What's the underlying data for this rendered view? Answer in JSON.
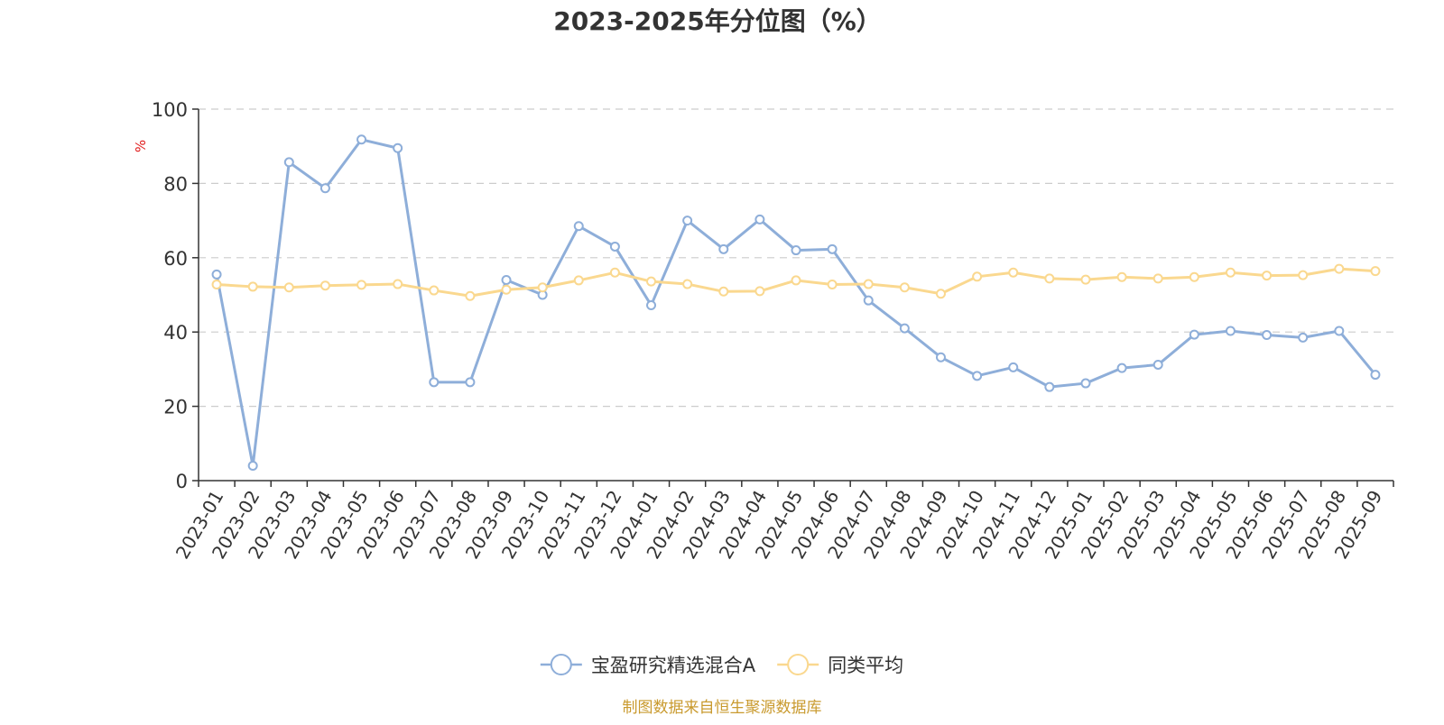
{
  "chart_data": {
    "type": "line",
    "title": "2023-2025年分位图（%）",
    "ylabel": "%",
    "xlabel": "",
    "ylim": [
      0,
      100
    ],
    "yticks": [
      0,
      20,
      40,
      60,
      80,
      100
    ],
    "grid": true,
    "legend_position": "bottom-center",
    "categories": [
      "2023-01",
      "2023-02",
      "2023-03",
      "2023-04",
      "2023-05",
      "2023-06",
      "2023-07",
      "2023-08",
      "2023-09",
      "2023-10",
      "2023-11",
      "2023-12",
      "2024-01",
      "2024-02",
      "2024-03",
      "2024-04",
      "2024-05",
      "2024-06",
      "2024-07",
      "2024-08",
      "2024-09",
      "2024-10",
      "2024-11",
      "2024-12",
      "2025-01",
      "2025-02",
      "2025-03",
      "2025-04",
      "2025-05",
      "2025-06",
      "2025-07",
      "2025-08",
      "2025-09"
    ],
    "series": [
      {
        "name": "宝盈研究精选混合A",
        "color": "#8eaed9",
        "values": [
          55.5,
          4.0,
          85.7,
          78.7,
          91.8,
          89.5,
          26.5,
          26.5,
          54.0,
          50.0,
          68.5,
          63.0,
          47.2,
          70.0,
          62.3,
          70.3,
          62.0,
          62.3,
          48.5,
          41.0,
          33.2,
          28.2,
          30.5,
          25.2,
          26.2,
          30.3,
          31.2,
          39.3,
          40.3,
          39.2,
          38.5,
          40.3,
          28.5
        ]
      },
      {
        "name": "同类平均",
        "color": "#fad88f",
        "values": [
          52.8,
          52.2,
          52.0,
          52.5,
          52.7,
          52.9,
          51.2,
          49.7,
          51.4,
          52.0,
          53.9,
          56.0,
          53.6,
          52.9,
          50.9,
          51.0,
          53.9,
          52.8,
          52.9,
          52.0,
          50.3,
          54.9,
          56.0,
          54.4,
          54.1,
          54.8,
          54.4,
          54.8,
          56.0,
          55.2,
          55.3,
          57.0,
          56.4
        ]
      }
    ]
  },
  "source_note": "制图数据来自恒生聚源数据库"
}
